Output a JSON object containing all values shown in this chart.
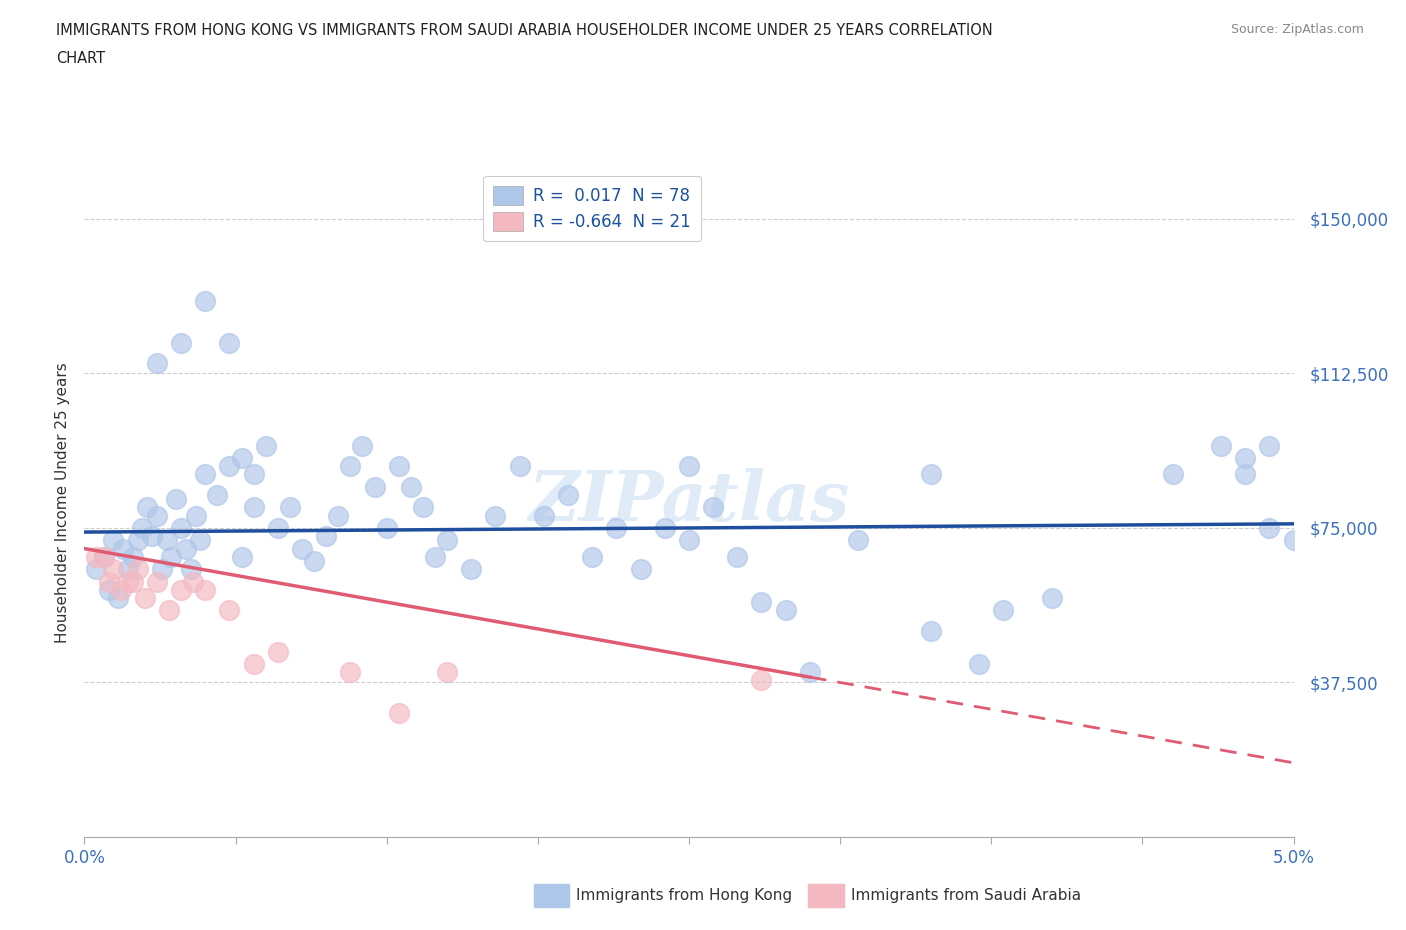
{
  "title_line1": "IMMIGRANTS FROM HONG KONG VS IMMIGRANTS FROM SAUDI ARABIA HOUSEHOLDER INCOME UNDER 25 YEARS CORRELATION",
  "title_line2": "CHART",
  "source_text": "Source: ZipAtlas.com",
  "ylabel": "Householder Income Under 25 years",
  "watermark": "ZIPatlas",
  "xlim": [
    0.0,
    5.0
  ],
  "ylim": [
    0,
    162500
  ],
  "y_ticks": [
    0,
    37500,
    75000,
    112500,
    150000
  ],
  "y_tick_labels": [
    "",
    "$37,500",
    "$75,000",
    "$112,500",
    "$150,000"
  ],
  "x_ticks": [
    0.0,
    0.625,
    1.25,
    1.875,
    2.5,
    3.125,
    3.75,
    4.375,
    5.0
  ],
  "hk_color": "#aec6e8",
  "sa_color": "#f4b8c1",
  "hk_line_color": "#1f4e9e",
  "sa_line_color": "#e05a72",
  "r_hk": "0.017",
  "n_hk": "78",
  "r_sa": "-0.664",
  "n_sa": "21",
  "legend_label_hk": "Immigrants from Hong Kong",
  "legend_label_sa": "Immigrants from Saudi Arabia",
  "background_color": "#ffffff",
  "grid_color": "#c8c8c8",
  "hk_scatter_x": [
    0.05,
    0.08,
    0.1,
    0.12,
    0.14,
    0.16,
    0.18,
    0.2,
    0.22,
    0.24,
    0.26,
    0.28,
    0.3,
    0.32,
    0.34,
    0.36,
    0.38,
    0.4,
    0.42,
    0.44,
    0.46,
    0.48,
    0.5,
    0.55,
    0.6,
    0.65,
    0.7,
    0.75,
    0.8,
    0.85,
    0.9,
    0.95,
    1.0,
    1.05,
    1.1,
    1.15,
    1.2,
    1.25,
    1.3,
    1.35,
    1.4,
    1.45,
    1.5,
    1.6,
    1.7,
    1.8,
    1.9,
    2.0,
    2.1,
    2.2,
    2.3,
    2.4,
    2.5,
    2.6,
    2.7,
    2.8,
    2.9,
    3.0,
    3.2,
    3.5,
    3.7,
    3.8,
    4.0,
    4.5,
    4.7,
    4.8,
    4.9,
    5.0,
    0.3,
    0.4,
    0.5,
    0.6,
    0.65,
    0.7,
    2.5,
    3.5,
    4.8,
    4.9
  ],
  "hk_scatter_y": [
    65000,
    68000,
    60000,
    72000,
    58000,
    70000,
    65000,
    68000,
    72000,
    75000,
    80000,
    73000,
    78000,
    65000,
    72000,
    68000,
    82000,
    75000,
    70000,
    65000,
    78000,
    72000,
    88000,
    83000,
    90000,
    68000,
    80000,
    95000,
    75000,
    80000,
    70000,
    67000,
    73000,
    78000,
    90000,
    95000,
    85000,
    75000,
    90000,
    85000,
    80000,
    68000,
    72000,
    65000,
    78000,
    90000,
    78000,
    83000,
    68000,
    75000,
    65000,
    75000,
    72000,
    80000,
    68000,
    57000,
    55000,
    40000,
    72000,
    50000,
    42000,
    55000,
    58000,
    88000,
    95000,
    88000,
    75000,
    72000,
    115000,
    120000,
    130000,
    120000,
    92000,
    88000,
    90000,
    88000,
    92000,
    95000
  ],
  "sa_scatter_x": [
    0.05,
    0.08,
    0.1,
    0.12,
    0.15,
    0.18,
    0.2,
    0.22,
    0.25,
    0.3,
    0.35,
    0.4,
    0.45,
    0.5,
    0.6,
    0.7,
    0.8,
    1.1,
    1.3,
    1.5,
    2.8
  ],
  "sa_scatter_y": [
    68000,
    68000,
    62000,
    65000,
    60000,
    62000,
    62000,
    65000,
    58000,
    62000,
    55000,
    60000,
    62000,
    60000,
    55000,
    42000,
    45000,
    40000,
    30000,
    40000,
    38000
  ],
  "hk_line_y_at_0": 74000,
  "hk_line_y_at_5": 76000,
  "sa_line_y_at_0": 70000,
  "sa_line_y_at_5": 18000,
  "sa_solid_end_x": 3.0
}
